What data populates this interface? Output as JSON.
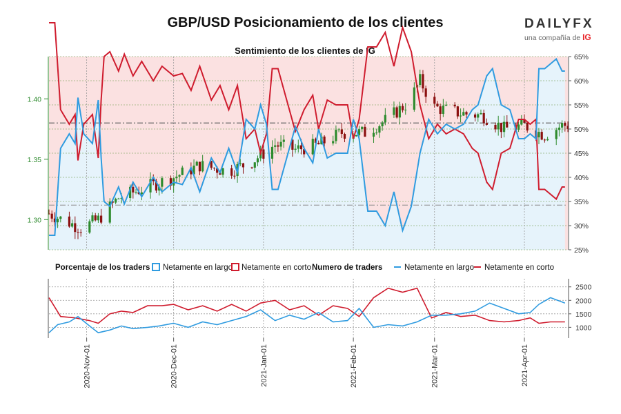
{
  "header": {
    "title": "GBP/USD Posicionamiento de los clientes",
    "brand": "DAILYFX",
    "brand_sub": "una compañía de",
    "brand_ig": "IG"
  },
  "colors": {
    "long": "#2f9be0",
    "short": "#cf1c2e",
    "long_fill": "#e6f3fb",
    "short_fill": "#fbe1e1",
    "bull_candle": "#2e8b2e",
    "bear_candle": "#8b1010",
    "left_axis": "#2e8b2e",
    "grid": "#999999"
  },
  "chart_data": [
    {
      "type": "line",
      "title": "Sentimiento de los clientes de IG",
      "description_series": [
        "GBP/USD price (candlesticks)",
        "Netamente en largo %"
      ],
      "left_axis": {
        "ticks": [
          "1.30",
          "1.35",
          "1.40"
        ],
        "ylim": [
          1.275,
          1.435
        ]
      },
      "right_axis": {
        "ticks": [
          "25%",
          "30%",
          "35%",
          "40%",
          "45%",
          "50%",
          "55%",
          "60%",
          "65%"
        ],
        "ylim": [
          25,
          65
        ]
      },
      "reference_lines": {
        "price": 1.38,
        "price_low": 1.312
      },
      "price_anchors": [
        [
          "2020-10-19",
          1.305
        ],
        [
          "2020-10-30",
          1.293
        ],
        [
          "2020-11-05",
          1.3
        ],
        [
          "2020-11-12",
          1.318
        ],
        [
          "2020-11-23",
          1.328
        ],
        [
          "2020-12-01",
          1.335
        ],
        [
          "2020-12-10",
          1.345
        ],
        [
          "2020-12-20",
          1.34
        ],
        [
          "2020-12-28",
          1.348
        ],
        [
          "2021-01-05",
          1.362
        ],
        [
          "2021-01-12",
          1.358
        ],
        [
          "2021-01-20",
          1.362
        ],
        [
          "2021-01-28",
          1.372
        ],
        [
          "2021-02-05",
          1.372
        ],
        [
          "2021-02-12",
          1.382
        ],
        [
          "2021-02-20",
          1.397
        ],
        [
          "2021-02-24",
          1.415
        ],
        [
          "2021-03-01",
          1.393
        ],
        [
          "2021-03-10",
          1.388
        ],
        [
          "2021-03-18",
          1.386
        ],
        [
          "2021-03-25",
          1.375
        ],
        [
          "2021-04-01",
          1.378
        ],
        [
          "2021-04-08",
          1.37
        ],
        [
          "2021-04-14",
          1.378
        ]
      ],
      "long_pct": [
        [
          "2020-10-19",
          28.0
        ],
        [
          "2020-10-21",
          28.0
        ],
        [
          "2020-10-23",
          46.0
        ],
        [
          "2020-10-26",
          49.0
        ],
        [
          "2020-10-28",
          47.0
        ],
        [
          "2020-10-29",
          56.5
        ],
        [
          "2020-10-31",
          49.0
        ],
        [
          "2020-11-03",
          47.0
        ],
        [
          "2020-11-05",
          56.0
        ],
        [
          "2020-11-06",
          44.0
        ],
        [
          "2020-11-07",
          35.0
        ],
        [
          "2020-11-09",
          34.0
        ],
        [
          "2020-11-12",
          38.0
        ],
        [
          "2020-11-14",
          34.5
        ],
        [
          "2020-11-17",
          39.0
        ],
        [
          "2020-11-20",
          36.0
        ],
        [
          "2020-11-24",
          40.0
        ],
        [
          "2020-11-27",
          37.0
        ],
        [
          "2020-12-01",
          39.0
        ],
        [
          "2020-12-04",
          38.5
        ],
        [
          "2020-12-07",
          42.0
        ],
        [
          "2020-12-10",
          37.0
        ],
        [
          "2020-12-14",
          44.0
        ],
        [
          "2020-12-17",
          41.0
        ],
        [
          "2020-12-20",
          46.0
        ],
        [
          "2020-12-23",
          41.0
        ],
        [
          "2020-12-26",
          52.0
        ],
        [
          "2020-12-29",
          50.0
        ],
        [
          "2020-12-31",
          55.0
        ],
        [
          "2021-01-02",
          51.0
        ],
        [
          "2021-01-04",
          37.5
        ],
        [
          "2021-01-06",
          37.5
        ],
        [
          "2021-01-09",
          44.0
        ],
        [
          "2021-01-12",
          50.5
        ],
        [
          "2021-01-15",
          46.0
        ],
        [
          "2021-01-18",
          43.0
        ],
        [
          "2021-01-20",
          50.0
        ],
        [
          "2021-01-23",
          44.0
        ],
        [
          "2021-01-26",
          45.0
        ],
        [
          "2021-01-30",
          45.0
        ],
        [
          "2021-02-01",
          52.0
        ],
        [
          "2021-02-03",
          48.0
        ],
        [
          "2021-02-06",
          33.0
        ],
        [
          "2021-02-09",
          33.0
        ],
        [
          "2021-02-12",
          30.0
        ],
        [
          "2021-02-15",
          37.0
        ],
        [
          "2021-02-18",
          29.0
        ],
        [
          "2021-02-21",
          34.0
        ],
        [
          "2021-02-24",
          45.0
        ],
        [
          "2021-02-27",
          52.0
        ],
        [
          "2021-03-02",
          49.0
        ],
        [
          "2021-03-05",
          51.0
        ],
        [
          "2021-03-08",
          50.0
        ],
        [
          "2021-03-11",
          51.0
        ],
        [
          "2021-03-14",
          54.0
        ],
        [
          "2021-03-16",
          55.0
        ],
        [
          "2021-03-19",
          61.0
        ],
        [
          "2021-03-21",
          62.5
        ],
        [
          "2021-03-24",
          55.0
        ],
        [
          "2021-03-27",
          54.0
        ],
        [
          "2021-03-30",
          48.0
        ],
        [
          "2021-04-01",
          48.0
        ],
        [
          "2021-04-03",
          49.0
        ],
        [
          "2021-04-05",
          48.0
        ],
        [
          "2021-04-06",
          62.5
        ],
        [
          "2021-04-08",
          62.5
        ],
        [
          "2021-04-10",
          63.5
        ],
        [
          "2021-04-12",
          64.5
        ],
        [
          "2021-04-14",
          62.0
        ],
        [
          "2021-04-15",
          62.0
        ]
      ]
    },
    {
      "type": "line",
      "title": "Numero de traders",
      "right_axis": {
        "ticks": [
          "1000",
          "1500",
          "2000",
          "2500"
        ],
        "ylim": [
          600,
          2800
        ]
      },
      "series": [
        {
          "name": "Netamente en largo",
          "points": [
            [
              "2020-10-19",
              800
            ],
            [
              "2020-10-22",
              1100
            ],
            [
              "2020-10-26",
              1200
            ],
            [
              "2020-10-29",
              1400
            ],
            [
              "2020-11-02",
              1050
            ],
            [
              "2020-11-05",
              800
            ],
            [
              "2020-11-09",
              900
            ],
            [
              "2020-11-13",
              1050
            ],
            [
              "2020-11-17",
              950
            ],
            [
              "2020-11-22",
              1000
            ],
            [
              "2020-11-26",
              1050
            ],
            [
              "2020-12-01",
              1150
            ],
            [
              "2020-12-06",
              1000
            ],
            [
              "2020-12-11",
              1200
            ],
            [
              "2020-12-16",
              1100
            ],
            [
              "2020-12-21",
              1250
            ],
            [
              "2020-12-26",
              1400
            ],
            [
              "2020-12-31",
              1650
            ],
            [
              "2021-01-05",
              1250
            ],
            [
              "2021-01-10",
              1450
            ],
            [
              "2021-01-15",
              1300
            ],
            [
              "2021-01-20",
              1550
            ],
            [
              "2021-01-25",
              1200
            ],
            [
              "2021-01-30",
              1250
            ],
            [
              "2021-02-03",
              1700
            ],
            [
              "2021-02-08",
              1000
            ],
            [
              "2021-02-13",
              1100
            ],
            [
              "2021-02-18",
              1050
            ],
            [
              "2021-02-23",
              1200
            ],
            [
              "2021-02-28",
              1450
            ],
            [
              "2021-03-05",
              1450
            ],
            [
              "2021-03-10",
              1500
            ],
            [
              "2021-03-15",
              1600
            ],
            [
              "2021-03-20",
              1900
            ],
            [
              "2021-03-25",
              1700
            ],
            [
              "2021-03-30",
              1500
            ],
            [
              "2021-04-03",
              1550
            ],
            [
              "2021-04-06",
              1850
            ],
            [
              "2021-04-10",
              2100
            ],
            [
              "2021-04-15",
              1900
            ]
          ]
        },
        {
          "name": "Netamente en corto",
          "points": [
            [
              "2020-10-19",
              2100
            ],
            [
              "2020-10-23",
              1400
            ],
            [
              "2020-10-28",
              1350
            ],
            [
              "2020-11-02",
              1250
            ],
            [
              "2020-11-05",
              1150
            ],
            [
              "2020-11-09",
              1500
            ],
            [
              "2020-11-13",
              1600
            ],
            [
              "2020-11-17",
              1550
            ],
            [
              "2020-11-22",
              1800
            ],
            [
              "2020-11-27",
              1800
            ],
            [
              "2020-12-01",
              1850
            ],
            [
              "2020-12-06",
              1650
            ],
            [
              "2020-12-11",
              1800
            ],
            [
              "2020-12-16",
              1600
            ],
            [
              "2020-12-21",
              1850
            ],
            [
              "2020-12-26",
              1600
            ],
            [
              "2020-12-31",
              1900
            ],
            [
              "2021-01-05",
              2000
            ],
            [
              "2021-01-10",
              1650
            ],
            [
              "2021-01-15",
              1800
            ],
            [
              "2021-01-20",
              1450
            ],
            [
              "2021-01-25",
              1800
            ],
            [
              "2021-01-30",
              1700
            ],
            [
              "2021-02-03",
              1400
            ],
            [
              "2021-02-08",
              2100
            ],
            [
              "2021-02-13",
              2450
            ],
            [
              "2021-02-18",
              2300
            ],
            [
              "2021-02-23",
              2450
            ],
            [
              "2021-02-28",
              1350
            ],
            [
              "2021-03-05",
              1550
            ],
            [
              "2021-03-10",
              1400
            ],
            [
              "2021-03-15",
              1450
            ],
            [
              "2021-03-20",
              1250
            ],
            [
              "2021-03-25",
              1200
            ],
            [
              "2021-03-30",
              1250
            ],
            [
              "2021-04-03",
              1350
            ],
            [
              "2021-04-06",
              1150
            ],
            [
              "2021-04-10",
              1200
            ],
            [
              "2021-04-15",
              1200
            ]
          ]
        }
      ]
    }
  ],
  "x_axis": {
    "range": [
      "2020-10-19",
      "2021-04-16"
    ],
    "tick_dates": [
      "2020-11-01",
      "2020-12-01",
      "2021-01-01",
      "2021-02-01",
      "2021-03-01",
      "2021-04-01"
    ],
    "tick_labels": [
      "2020-Nov-01",
      "2020-Dec-01",
      "2021-Jan-01",
      "2021-Feb-01",
      "2021-Mar-01",
      "2021-Apr-01"
    ]
  },
  "legend": {
    "pct_title": "Porcentaje de los traders",
    "pct_long": "Netamente en largo",
    "pct_short": "Netamente en corto",
    "count_title": "Numero de traders",
    "count_long": "Netamente en largo",
    "count_short": "Netamente en corto"
  }
}
